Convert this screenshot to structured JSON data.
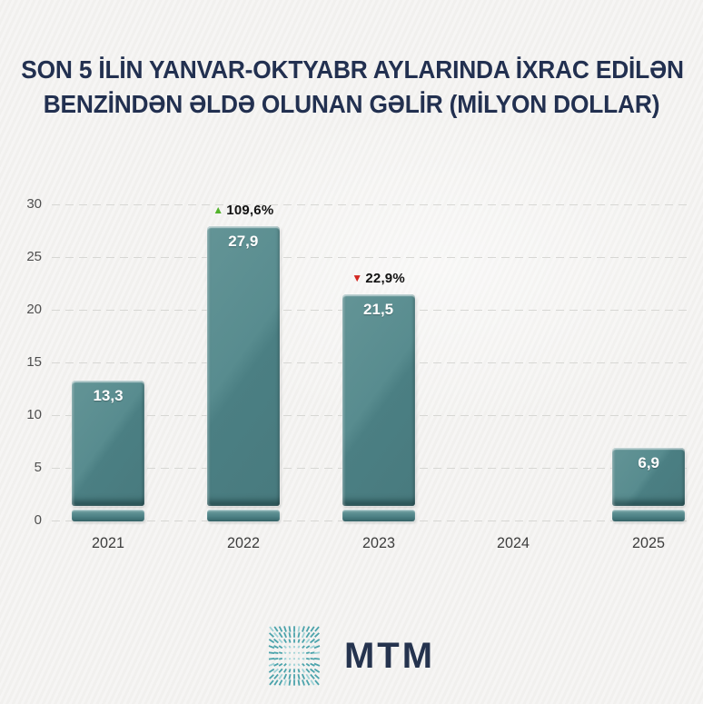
{
  "title": {
    "line1": "SON 5 İLİN YANVAR-OKTYABR AYLARINDA İXRAC EDİLƏN",
    "line2": "BENZİNDƏN ƏLDƏ OLUNAN GƏLİR (MİLYON DOLLAR)"
  },
  "footer": {
    "brand": "MTM"
  },
  "colors": {
    "background": "#f3f2f0",
    "title_navy": "#223050",
    "bar_teal": "#528689",
    "gridline": "#d7d7d4",
    "axis_text": "#4f4f4f",
    "year_text": "#3d3d3d",
    "value_text": "#ffffff",
    "up_green": "#53b32b",
    "down_red": "#d32721",
    "logo_teal": "#4ba3ab",
    "brand_navy": "#25334e"
  },
  "chart_data": {
    "type": "bar",
    "title": "SON 5 İLİN YANVAR-OKTYABR AYLARINDA İXRAC EDİLƏN BENZİNDƏN ƏLDƏ OLUNAN GƏLİR (MİLYON DOLLAR)",
    "unit": "milyon dollar",
    "categories": [
      "2021",
      "2022",
      "2023",
      "2024",
      "2025"
    ],
    "values": [
      13.3,
      27.9,
      21.5,
      null,
      6.9
    ],
    "value_labels": [
      "13,3",
      "27,9",
      "21,5",
      "",
      "6,9"
    ],
    "annotations": [
      {
        "index": 1,
        "category": "2022",
        "direction": "up",
        "label": "109,6%",
        "triangle": "▲",
        "triangle_color": "#53b32b"
      },
      {
        "index": 2,
        "category": "2023",
        "direction": "down",
        "label": "22,9%",
        "triangle": "▼",
        "triangle_color": "#d32721"
      }
    ],
    "xlabel": "",
    "ylabel": "",
    "ylim": [
      0,
      30
    ],
    "yticks": [
      0,
      5,
      10,
      15,
      20,
      25,
      30
    ],
    "grid": "dashed-horizontal",
    "legend_position": "none",
    "bar_color": "#528689"
  }
}
